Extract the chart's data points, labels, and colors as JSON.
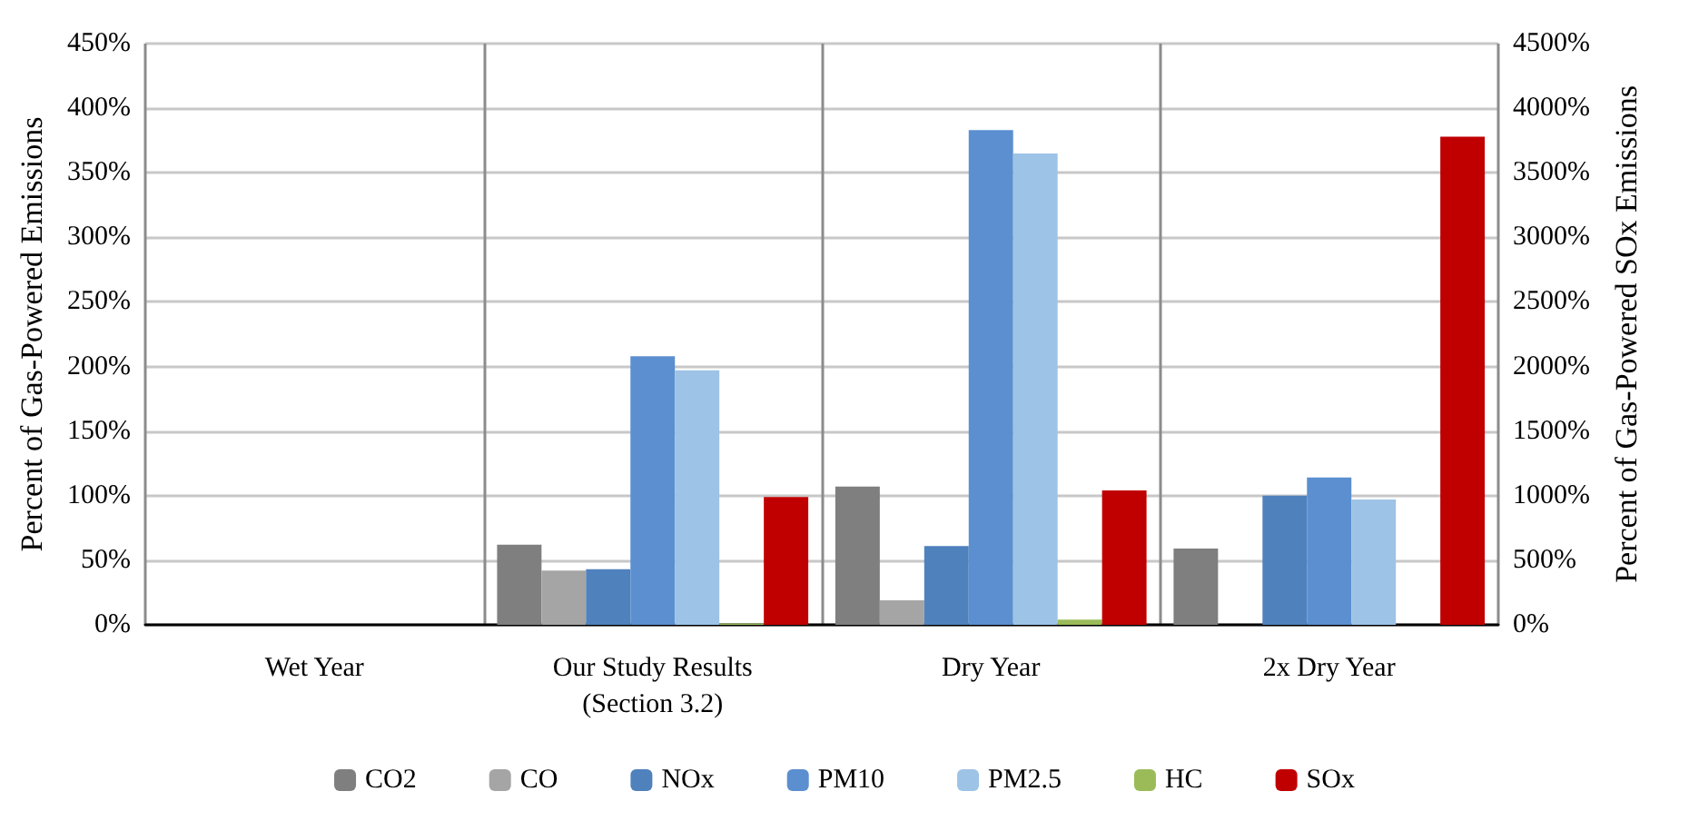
{
  "chart_data": {
    "type": "bar",
    "ylabel": "Percent of Gas-Powered Emissions",
    "y2label": "Percent of Gas-Powered SOx Emissions",
    "categories": [
      "Wet Year",
      "Our Study Results\n(Section 3.2)",
      "Dry Year",
      "2x Dry Year"
    ],
    "series": [
      {
        "name": "CO2",
        "color": "#7f7f7f",
        "values": [
          null,
          62,
          107,
          59
        ]
      },
      {
        "name": "CO",
        "color": "#a5a5a5",
        "values": [
          null,
          42,
          19,
          null
        ]
      },
      {
        "name": "NOx",
        "color": "#4f81bd",
        "values": [
          null,
          43,
          61,
          100
        ]
      },
      {
        "name": "PM10",
        "color": "#5b8fd0",
        "values": [
          null,
          208,
          383,
          114
        ]
      },
      {
        "name": "PM2.5",
        "color": "#9dc3e6",
        "values": [
          null,
          197,
          365,
          97
        ]
      },
      {
        "name": "HC",
        "color": "#9bbb59",
        "values": [
          null,
          1,
          4,
          null
        ]
      },
      {
        "name": "SOx",
        "color": "#c00000",
        "axis": "y2",
        "values": [
          null,
          990,
          1040,
          3780
        ]
      }
    ],
    "ylim": [
      0,
      450
    ],
    "yticks": [
      {
        "value": 0,
        "label": "0%"
      },
      {
        "value": 50,
        "label": "50%"
      },
      {
        "value": 100,
        "label": "100%"
      },
      {
        "value": 150,
        "label": "150%"
      },
      {
        "value": 200,
        "label": "200%"
      },
      {
        "value": 250,
        "label": "250%"
      },
      {
        "value": 300,
        "label": "300%"
      },
      {
        "value": 350,
        "label": "350%"
      },
      {
        "value": 400,
        "label": "400%"
      },
      {
        "value": 450,
        "label": "450%"
      }
    ],
    "y2lim": [
      0,
      4500
    ],
    "y2ticks": [
      {
        "value": 0,
        "label": "0%"
      },
      {
        "value": 500,
        "label": "500%"
      },
      {
        "value": 1000,
        "label": "1000%"
      },
      {
        "value": 1500,
        "label": "1500%"
      },
      {
        "value": 2000,
        "label": "2000%"
      },
      {
        "value": 2500,
        "label": "2500%"
      },
      {
        "value": 3000,
        "label": "3000%"
      },
      {
        "value": 3500,
        "label": "3500%"
      },
      {
        "value": 4000,
        "label": "4000%"
      },
      {
        "value": 4500,
        "label": "4500%"
      }
    ],
    "grid": true,
    "legend": "bottom"
  }
}
